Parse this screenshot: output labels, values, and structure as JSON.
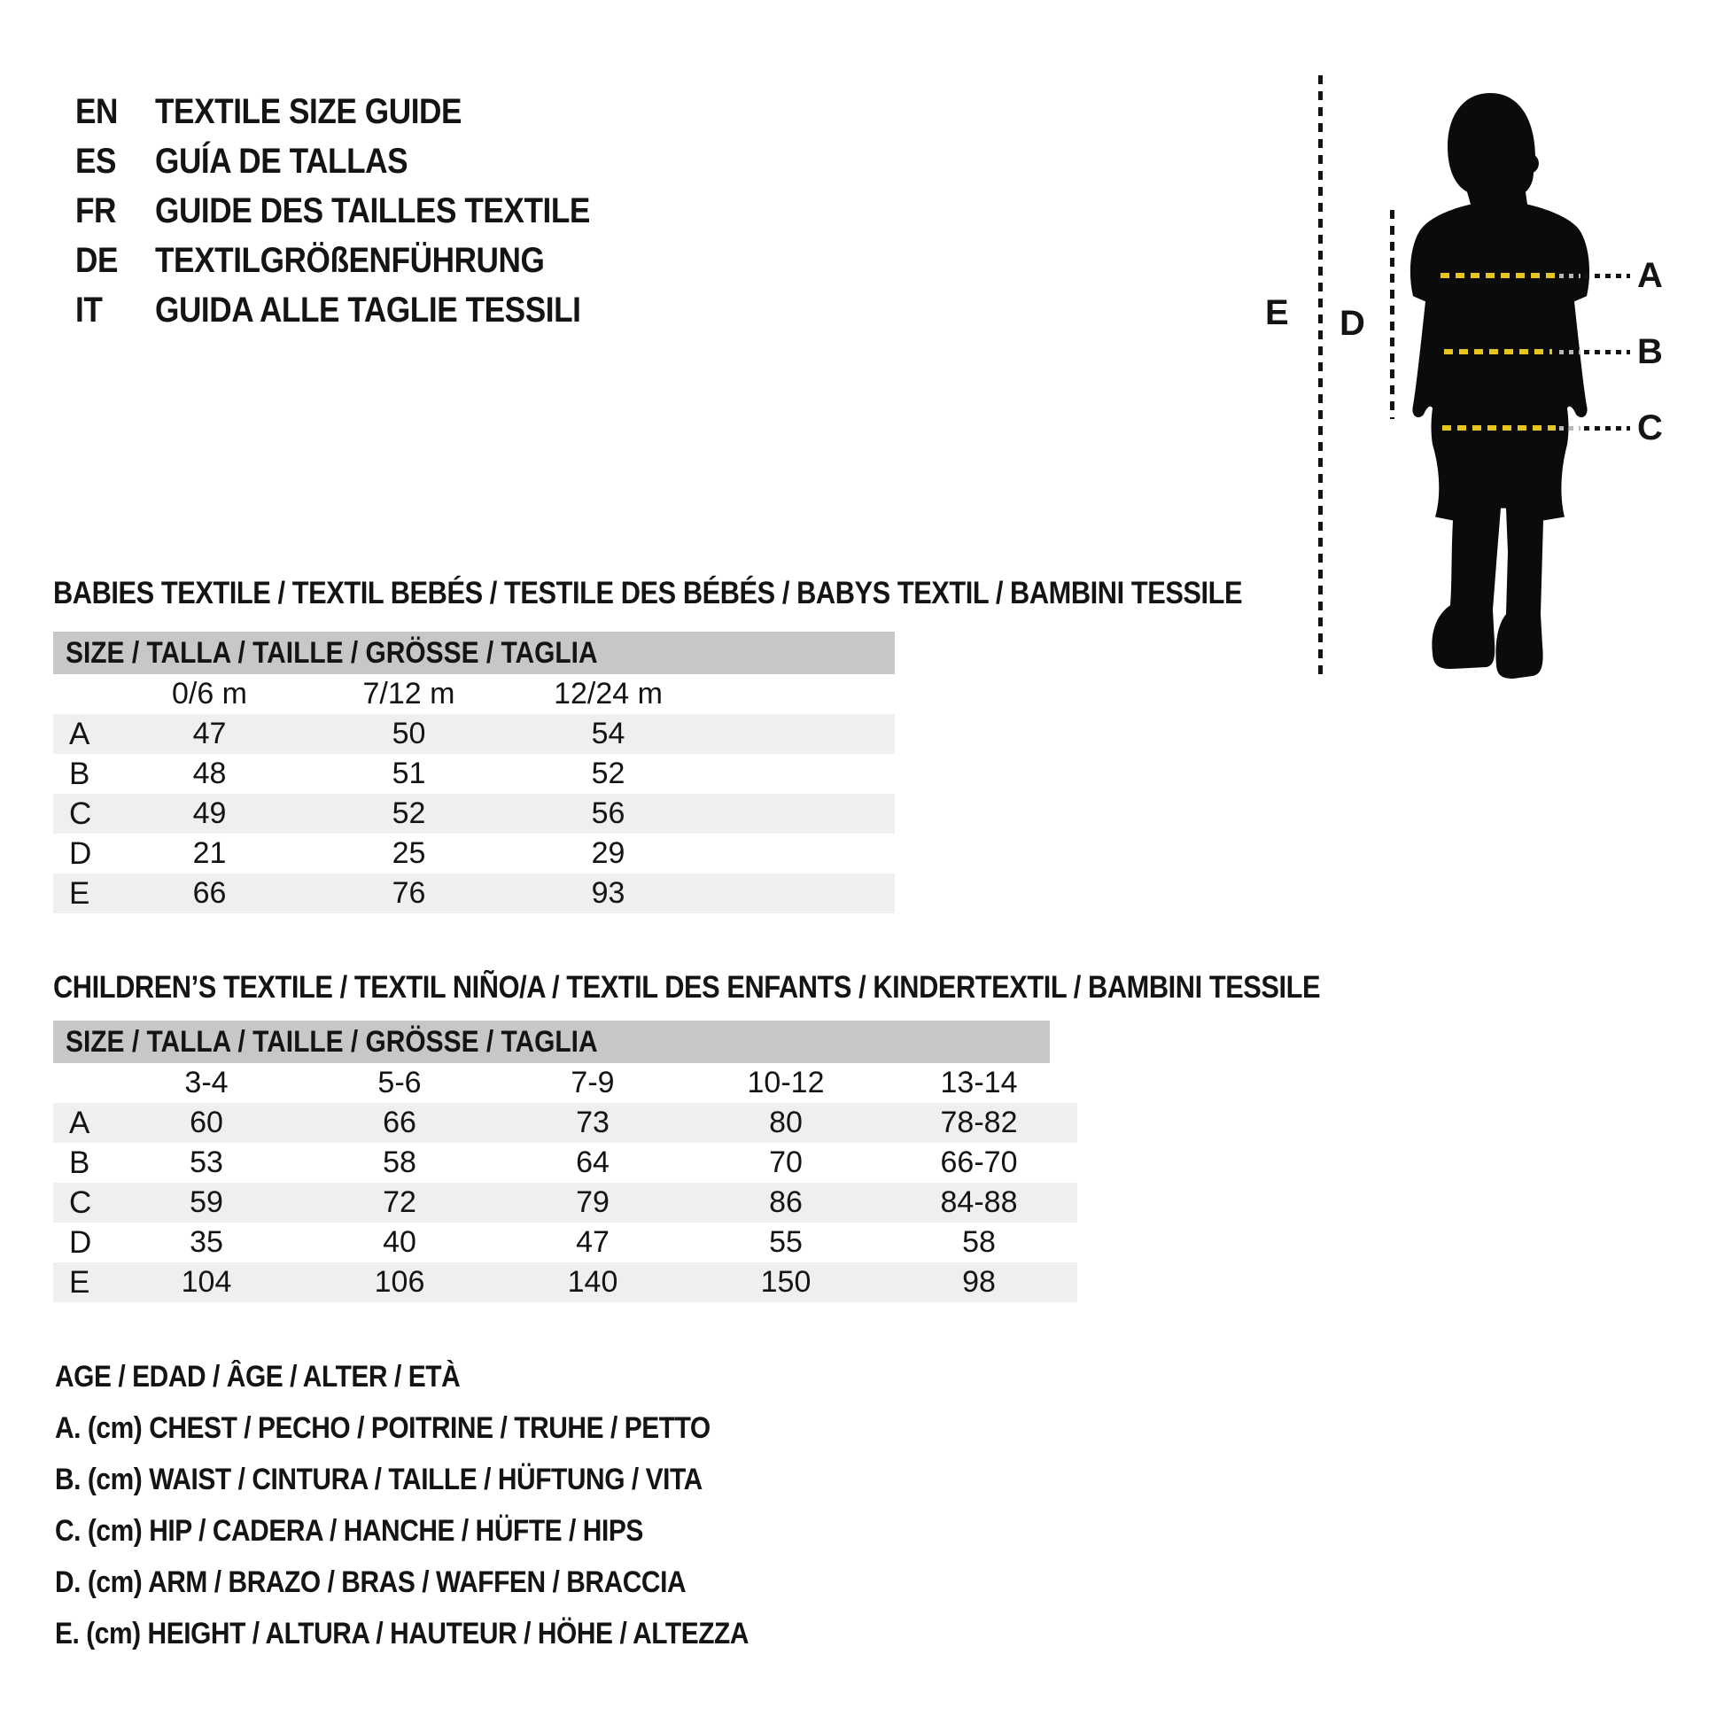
{
  "languages": [
    {
      "code": "EN",
      "title": "TEXTILE SIZE GUIDE"
    },
    {
      "code": "ES",
      "title": "GUÍA DE TALLAS"
    },
    {
      "code": "FR",
      "title": "GUIDE DES TAILLES TEXTILE"
    },
    {
      "code": "DE",
      "title": "TEXTILGRÖßENFÜHRUNG"
    },
    {
      "code": "IT",
      "title": "GUIDA ALLE TAGLIE TESSILI"
    }
  ],
  "figure": {
    "label_a": "A",
    "label_b": "B",
    "label_c": "C",
    "label_d": "D",
    "label_e": "E",
    "dash_color": "#e7c51f",
    "silhouette_color": "#0b0b0b"
  },
  "babies": {
    "heading": "BABIES TEXTILE / TEXTIL BEBÉS / TESTILE DES BÉBÉS / BABYS TEXTIL / BAMBINI TESSILE",
    "size_header": "SIZE / TALLA / TAILLE / GRÖSSE / TAGLIA",
    "columns": [
      "0/6 m",
      "7/12 m",
      "12/24 m"
    ],
    "rows": [
      {
        "label": "A",
        "values": [
          "47",
          "50",
          "54"
        ]
      },
      {
        "label": "B",
        "values": [
          "48",
          "51",
          "52"
        ]
      },
      {
        "label": "C",
        "values": [
          "49",
          "52",
          "56"
        ]
      },
      {
        "label": "D",
        "values": [
          "21",
          "25",
          "29"
        ]
      },
      {
        "label": "E",
        "values": [
          "66",
          "76",
          "93"
        ]
      }
    ]
  },
  "children": {
    "heading": "CHILDREN’S TEXTILE / TEXTIL NIÑO/A / TEXTIL DES ENFANTS / KINDERTEXTIL / BAMBINI TESSILE",
    "size_header": "SIZE / TALLA / TAILLE / GRÖSSE / TAGLIA",
    "columns": [
      "3-4",
      "5-6",
      "7-9",
      "10-12",
      "13-14"
    ],
    "rows": [
      {
        "label": "A",
        "values": [
          "60",
          "66",
          "73",
          "80",
          "78-82"
        ]
      },
      {
        "label": "B",
        "values": [
          "53",
          "58",
          "64",
          "70",
          "66-70"
        ]
      },
      {
        "label": "C",
        "values": [
          "59",
          "72",
          "79",
          "86",
          "84-88"
        ]
      },
      {
        "label": "D",
        "values": [
          "35",
          "40",
          "47",
          "55",
          "58"
        ]
      },
      {
        "label": "E",
        "values": [
          "104",
          "106",
          "140",
          "150",
          "98"
        ]
      }
    ]
  },
  "legend": [
    "AGE / EDAD / ÂGE / ALTER / ETÀ",
    "A. (cm) CHEST / PECHO / POITRINE / TRUHE / PETTO",
    "B. (cm) WAIST / CINTURA / TAILLE / HÜFTUNG / VITA",
    "C. (cm) HIP / CADERA / HANCHE / HÜFTE / HIPS",
    "D. (cm) ARM / BRAZO / BRAS / WAFFEN / BRACCIA",
    "E. (cm) HEIGHT / ALTURA / HAUTEUR / HÖHE / ALTEZZA"
  ]
}
